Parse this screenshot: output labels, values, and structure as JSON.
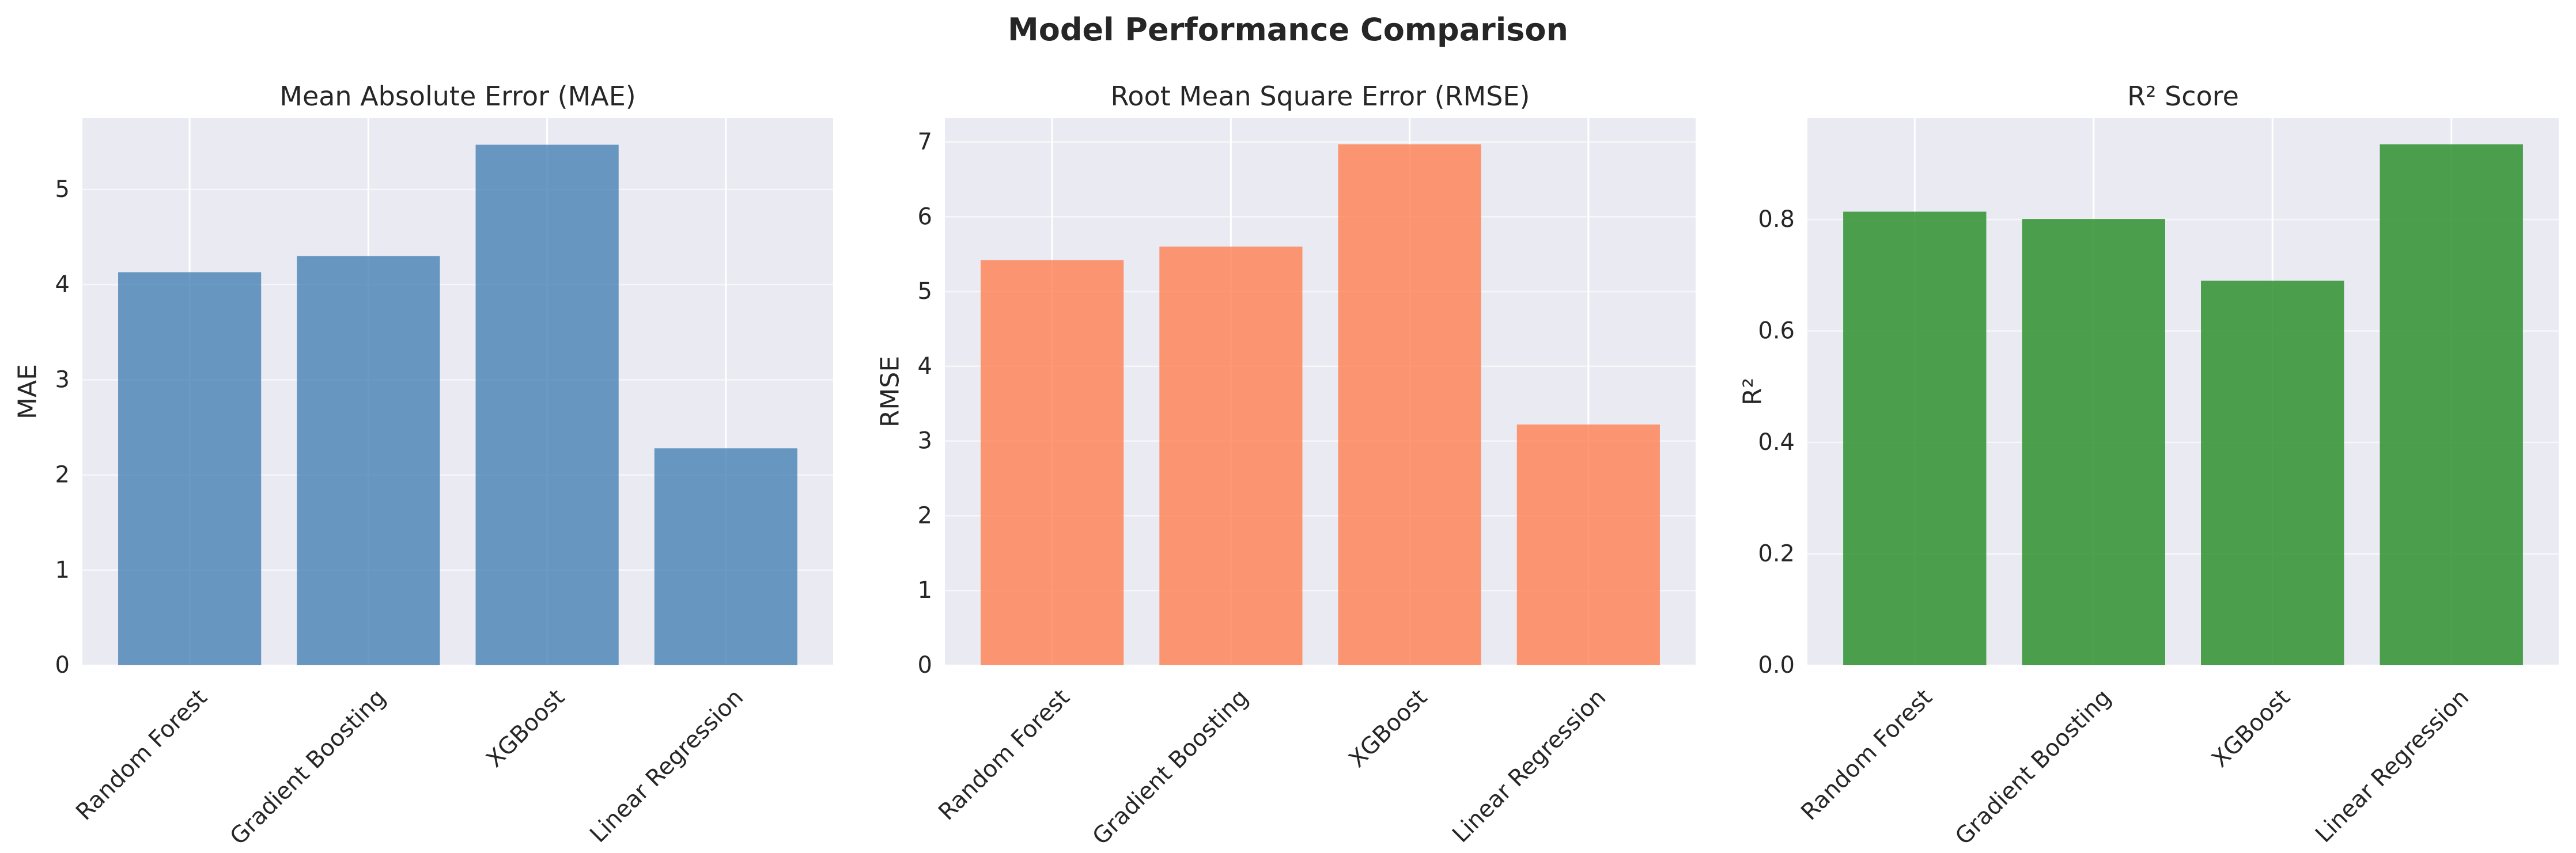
{
  "figure": {
    "title": "Model Performance Comparison"
  },
  "chart_data": [
    {
      "type": "bar",
      "title": "Mean Absolute Error (MAE)",
      "xlabel": "",
      "ylabel": "MAE",
      "categories": [
        "Random Forest",
        "Gradient Boosting",
        "XGBoost",
        "Linear Regression"
      ],
      "values": [
        4.13,
        4.3,
        5.47,
        2.28
      ],
      "ylim": [
        0,
        5.75
      ],
      "yticks": [
        0,
        1,
        2,
        3,
        4,
        5
      ],
      "ytick_labels": [
        "0",
        "1",
        "2",
        "3",
        "4",
        "5"
      ],
      "color": "#4682B4",
      "grid": true,
      "legend": false
    },
    {
      "type": "bar",
      "title": "Root Mean Square Error (RMSE)",
      "xlabel": "",
      "ylabel": "RMSE",
      "categories": [
        "Random Forest",
        "Gradient Boosting",
        "XGBoost",
        "Linear Regression"
      ],
      "values": [
        5.42,
        5.6,
        6.97,
        3.22
      ],
      "ylim": [
        0,
        7.32
      ],
      "yticks": [
        0,
        1,
        2,
        3,
        4,
        5,
        6,
        7
      ],
      "ytick_labels": [
        "0",
        "1",
        "2",
        "3",
        "4",
        "5",
        "6",
        "7"
      ],
      "color": "#FF7F50",
      "grid": true,
      "legend": false
    },
    {
      "type": "bar",
      "title": "R² Score",
      "xlabel": "",
      "ylabel": "R²",
      "categories": [
        "Random Forest",
        "Gradient Boosting",
        "XGBoost",
        "Linear Regression"
      ],
      "values": [
        0.814,
        0.801,
        0.69,
        0.935
      ],
      "ylim": [
        0,
        0.982
      ],
      "yticks": [
        0,
        0.2,
        0.4,
        0.6,
        0.8
      ],
      "ytick_labels": [
        "0.0",
        "0.2",
        "0.4",
        "0.6",
        "0.8"
      ],
      "color": "#228B22",
      "grid": true,
      "legend": false
    }
  ]
}
